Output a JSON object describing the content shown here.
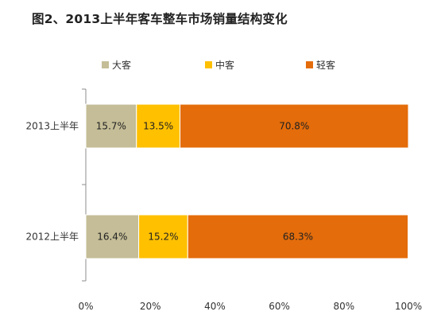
{
  "chart_data": {
    "type": "bar",
    "orientation": "horizontal",
    "stacked": "percent",
    "title": "图2、2013上半年客车整车市场销量结构变化",
    "categories": [
      "2013上半年",
      "2012上半年"
    ],
    "series": [
      {
        "name": "大客",
        "color": "#c4bd97",
        "values": [
          15.7,
          16.4
        ],
        "labels": [
          "15.7%",
          "16.4%"
        ]
      },
      {
        "name": "中客",
        "color": "#ffc000",
        "values": [
          13.5,
          15.2
        ],
        "labels": [
          "13.5%",
          "15.2%"
        ]
      },
      {
        "name": "轻客",
        "color": "#e46c0a",
        "values": [
          70.8,
          68.3
        ],
        "labels": [
          "70.8%",
          "68.3%"
        ]
      }
    ],
    "xlim": [
      0,
      100
    ],
    "xticks": [
      "0%",
      "20%",
      "40%",
      "60%",
      "80%",
      "100%"
    ],
    "grid": false,
    "legend": "top"
  }
}
